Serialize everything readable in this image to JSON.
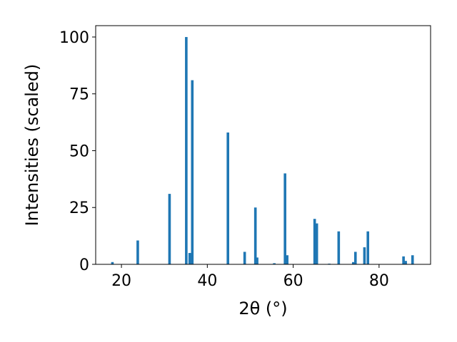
{
  "chart_data": {
    "type": "bar",
    "xlabel": "2θ (°)",
    "ylabel": "Intensities (scaled)",
    "xlim": [
      14,
      92
    ],
    "ylim": [
      0,
      105
    ],
    "x_ticks": [
      20,
      40,
      60,
      80
    ],
    "y_ticks": [
      0,
      25,
      50,
      75,
      100
    ],
    "bar_color": "#1f77b4",
    "grid": false,
    "bar_width": 0.6,
    "series": [
      {
        "x": [
          17.9,
          23.8,
          31.2,
          35.1,
          35.9,
          36.5,
          44.8,
          48.7,
          51.2,
          51.6,
          55.6,
          58.1,
          58.6,
          65.0,
          65.5,
          68.4,
          70.6,
          74.0,
          74.5,
          76.6,
          77.4,
          85.7,
          86.2,
          87.8
        ],
        "values": [
          1,
          10.5,
          31,
          100,
          5,
          81,
          58,
          5.5,
          25,
          3,
          0.5,
          40,
          4,
          20,
          18,
          0.3,
          14.5,
          1,
          5.5,
          7.5,
          14.5,
          3.5,
          1.5,
          4
        ]
      }
    ]
  }
}
